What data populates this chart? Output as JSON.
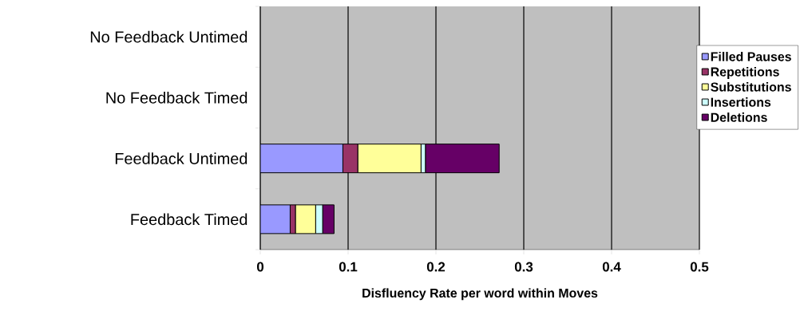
{
  "chart_data": {
    "type": "bar",
    "orientation": "horizontal",
    "stacked": true,
    "categories": [
      "No Feedback Untimed",
      "No Feedback Timed",
      "Feedback Untimed",
      "Feedback Timed"
    ],
    "series": [
      {
        "name": "Filled Pauses",
        "color": "#9999ff",
        "values": [
          0,
          0,
          0.094,
          0.034
        ]
      },
      {
        "name": "Repetitions",
        "color": "#993366",
        "values": [
          0,
          0,
          0.017,
          0.006
        ]
      },
      {
        "name": "Substitutions",
        "color": "#ffff99",
        "values": [
          0,
          0,
          0.072,
          0.023
        ]
      },
      {
        "name": "Insertions",
        "color": "#ccffff",
        "values": [
          0,
          0,
          0.005,
          0.008
        ]
      },
      {
        "name": "Deletions",
        "color": "#660066",
        "values": [
          0,
          0,
          0.084,
          0.013
        ]
      }
    ],
    "xlabel": "Disfluency Rate per word within Moves",
    "xlim": [
      0,
      0.5
    ],
    "xticks": [
      0,
      0.1,
      0.2,
      0.3,
      0.4,
      0.5
    ],
    "grid": "x",
    "legend": "right"
  }
}
